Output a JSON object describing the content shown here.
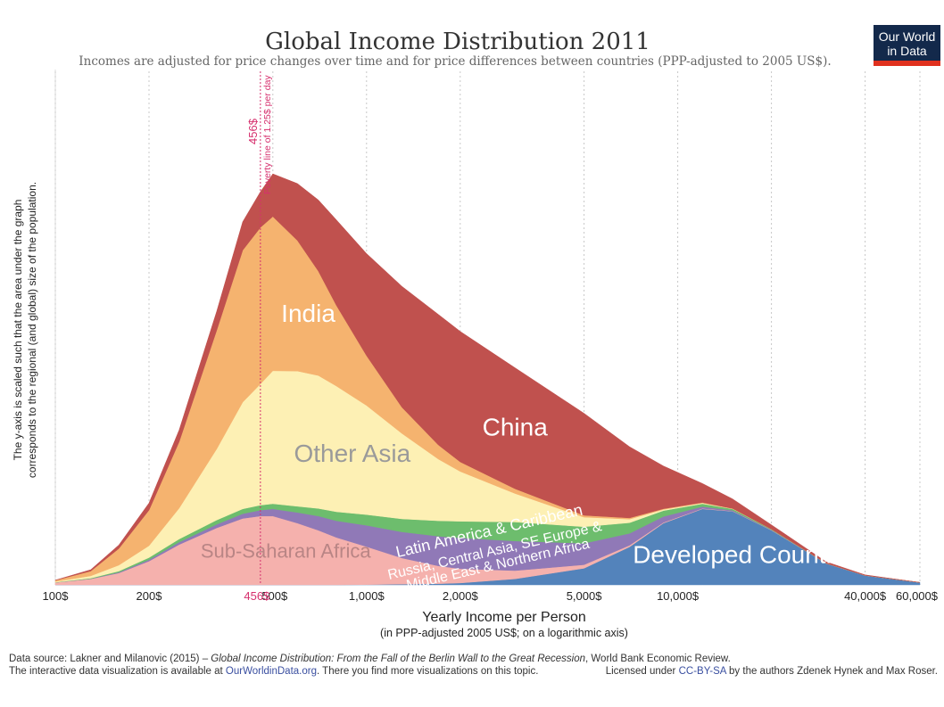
{
  "header": {
    "title": "Global Income Distribution 2011",
    "subtitle": "Incomes are adjusted for price changes over time and for price differences between countries (PPP-adjusted to 2005 US$)."
  },
  "logo": {
    "line1": "Our World",
    "line2": "in Data",
    "bg_color": "#13294b",
    "bar_color": "#e0311e"
  },
  "yaxis": {
    "title_line1": "The y-axis is scaled such that the area under the graph",
    "title_line2": "corresponds to the regional (and global) size of the population."
  },
  "xaxis": {
    "title": "Yearly Income per Person",
    "subtitle": "(in PPP-adjusted 2005 US$; on a logarithmic axis)"
  },
  "poverty_line": {
    "value_label": "456$",
    "text": "Poverty line of 1.25$ per day",
    "tick_label": "456$",
    "color": "#d6306e"
  },
  "footer": {
    "source_prefix": "Data source: Lakner and Milanovic (2015) – ",
    "source_title": "Global Income Distribution: From the Fall of the Berlin Wall to the Great Recession",
    "source_suffix": ", World Bank Economic Review.",
    "interactive_prefix": "The interactive data visualization is available at ",
    "interactive_link": "OurWorldinData.org",
    "interactive_suffix": ". There you find more visualizations on this topic.",
    "license_prefix": "Licensed under ",
    "license_link": "CC-BY-SA",
    "license_suffix": " by the authors Zdenek Hynek and Max Roser."
  },
  "chart_data": {
    "type": "area",
    "stacked": true,
    "x_scale": "log",
    "xlim": [
      100,
      60000
    ],
    "x_ticks": [
      {
        "value": 100,
        "label": "100$"
      },
      {
        "value": 200,
        "label": "200$"
      },
      {
        "value": 500,
        "label": "500$"
      },
      {
        "value": 1000,
        "label": "1,000$"
      },
      {
        "value": 2000,
        "label": "2,000$"
      },
      {
        "value": 5000,
        "label": "5,000$"
      },
      {
        "value": 10000,
        "label": "10,000$"
      },
      {
        "value": 40000,
        "label": "40,000$"
      },
      {
        "value": 60000,
        "label": "60,000$"
      }
    ],
    "grid_x": true,
    "grid_values": [
      100,
      200,
      500,
      1000,
      2000,
      5000,
      10000,
      20000,
      40000,
      60000
    ],
    "x": [
      100,
      130,
      160,
      200,
      250,
      330,
      400,
      456,
      500,
      600,
      700,
      800,
      1000,
      1300,
      1700,
      2000,
      3000,
      5000,
      7000,
      9000,
      12000,
      15000,
      20000,
      30000,
      40000,
      60000
    ],
    "series": [
      {
        "name": "Developed Countries",
        "color": "#5383bb",
        "values": [
          0,
          0,
          0,
          0,
          0,
          0,
          0,
          0,
          0,
          0,
          0,
          0,
          0.1,
          0.3,
          0.5,
          0.8,
          2.5,
          7,
          16,
          26,
          32,
          31,
          23,
          9,
          4,
          1
        ]
      },
      {
        "name": "Sub-Saharan Africa",
        "color": "#f5b1ad",
        "values": [
          1,
          2.5,
          5,
          10,
          17,
          24,
          28,
          29,
          29,
          26,
          23,
          20,
          16,
          11,
          7.5,
          6,
          3.5,
          1.5,
          0.7,
          0.3,
          0.2,
          0.1,
          0.1,
          0,
          0,
          0
        ]
      },
      {
        "name": "Russia, Central Asia, SE Europe & Middle East & Northern Africa",
        "color": "#9079b7",
        "values": [
          0,
          0.1,
          0.3,
          0.6,
          1,
          1.5,
          2,
          2.5,
          3,
          4.5,
          6,
          7,
          9,
          11,
          12.5,
          13,
          12.5,
          9,
          5,
          2.5,
          0.8,
          0.3,
          0.1,
          0,
          0,
          0
        ]
      },
      {
        "name": "Latin America & Caribbean",
        "color": "#6dbd6d",
        "values": [
          0.1,
          0.2,
          0.5,
          0.9,
          1.3,
          1.8,
          2,
          2.1,
          2.2,
          2.6,
          3.2,
          3.8,
          4.5,
          5.5,
          6.5,
          7,
          8,
          7,
          4.5,
          2.5,
          1.2,
          0.6,
          0.3,
          0.1,
          0,
          0
        ]
      },
      {
        "name": "Other Asia",
        "color": "#fdf0b4",
        "values": [
          0.3,
          1,
          2.5,
          5,
          13,
          30,
          45,
          51,
          56,
          57,
          56,
          53,
          46,
          36,
          26,
          21,
          12,
          4,
          1.5,
          0.5,
          0.3,
          0.1,
          0,
          0,
          0,
          0
        ]
      },
      {
        "name": "India",
        "color": "#f5b36f",
        "values": [
          0.5,
          2,
          7,
          15,
          28,
          50,
          64,
          66,
          65,
          55,
          44,
          34,
          21,
          11,
          6,
          4,
          2,
          0.8,
          0.5,
          0.3,
          0.2,
          0.1,
          0,
          0,
          0,
          0
        ]
      },
      {
        "name": "China",
        "color": "#c0514e",
        "values": [
          0.1,
          0.6,
          1.5,
          3,
          5,
          8,
          12,
          15,
          18,
          24,
          30,
          36,
          43,
          51,
          55,
          55,
          51,
          43,
          30,
          18,
          8,
          4,
          1.8,
          0.6,
          0.2,
          0
        ]
      }
    ],
    "region_labels": [
      {
        "series": "China",
        "text": "China"
      },
      {
        "series": "India",
        "text": "India"
      },
      {
        "series": "Other Asia",
        "text": "Other Asia"
      },
      {
        "series": "Latin America & Caribbean",
        "text": "Latin America & Caribbean"
      },
      {
        "series": "Russia, Central Asia, SE Europe & Middle East & Northern Africa",
        "text_line1": "Russia, Central Asia, SE Europe &",
        "text_line2": "Middle East & Northern Africa"
      },
      {
        "series": "Sub-Saharan Africa",
        "text": "Sub-Saharan Africa"
      },
      {
        "series": "Developed Countries",
        "text": "Developed Countries"
      }
    ],
    "poverty_line_x": 456
  }
}
